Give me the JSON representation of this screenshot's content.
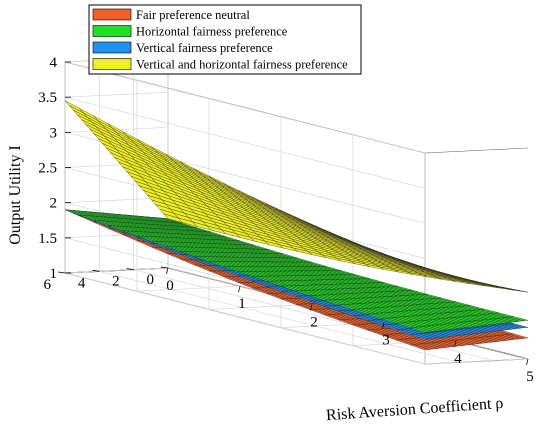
{
  "chart_data": {
    "type": "surface",
    "xlabel": "Risk Aversion Coefficient ρ",
    "ylabel": "",
    "zlabel": "Output Utility I",
    "x_ticks": [
      "0",
      "1",
      "2",
      "3",
      "4",
      "5"
    ],
    "y_ticks": [
      "0",
      "2",
      "4",
      "6"
    ],
    "z_ticks": [
      "1",
      "1.5",
      "2",
      "2.5",
      "3",
      "3.5",
      "4"
    ],
    "xlim": [
      0,
      5
    ],
    "ylim": [
      0,
      6
    ],
    "zlim": [
      1,
      4
    ],
    "grid": true,
    "legend_position": "top-left",
    "series": [
      {
        "name": "Fair preference neutral",
        "color": "#f0602a",
        "corners": {
          "x0_y0": 1.7,
          "x5_y0": 1.3,
          "x0_y6": 1.9,
          "x5_y6": 1.2
        }
      },
      {
        "name": "Horizontal fairness preference",
        "color": "#22e022",
        "corners": {
          "x0_y0": 1.7,
          "x5_y0": 1.55,
          "x0_y6": 1.9,
          "x5_y6": 1.45
        }
      },
      {
        "name": "Vertical fairness preference",
        "color": "#1e90f0",
        "corners": {
          "x0_y0": 1.7,
          "x5_y0": 1.45,
          "x0_y6": 1.9,
          "x5_y6": 1.35
        }
      },
      {
        "name": "Vertical and horizontal fairness preference",
        "color": "#f0f020",
        "corners": {
          "x0_y0": 1.7,
          "x5_y0": 1.95,
          "x0_y6": 3.45,
          "x5_y6": 2.3
        }
      }
    ]
  }
}
